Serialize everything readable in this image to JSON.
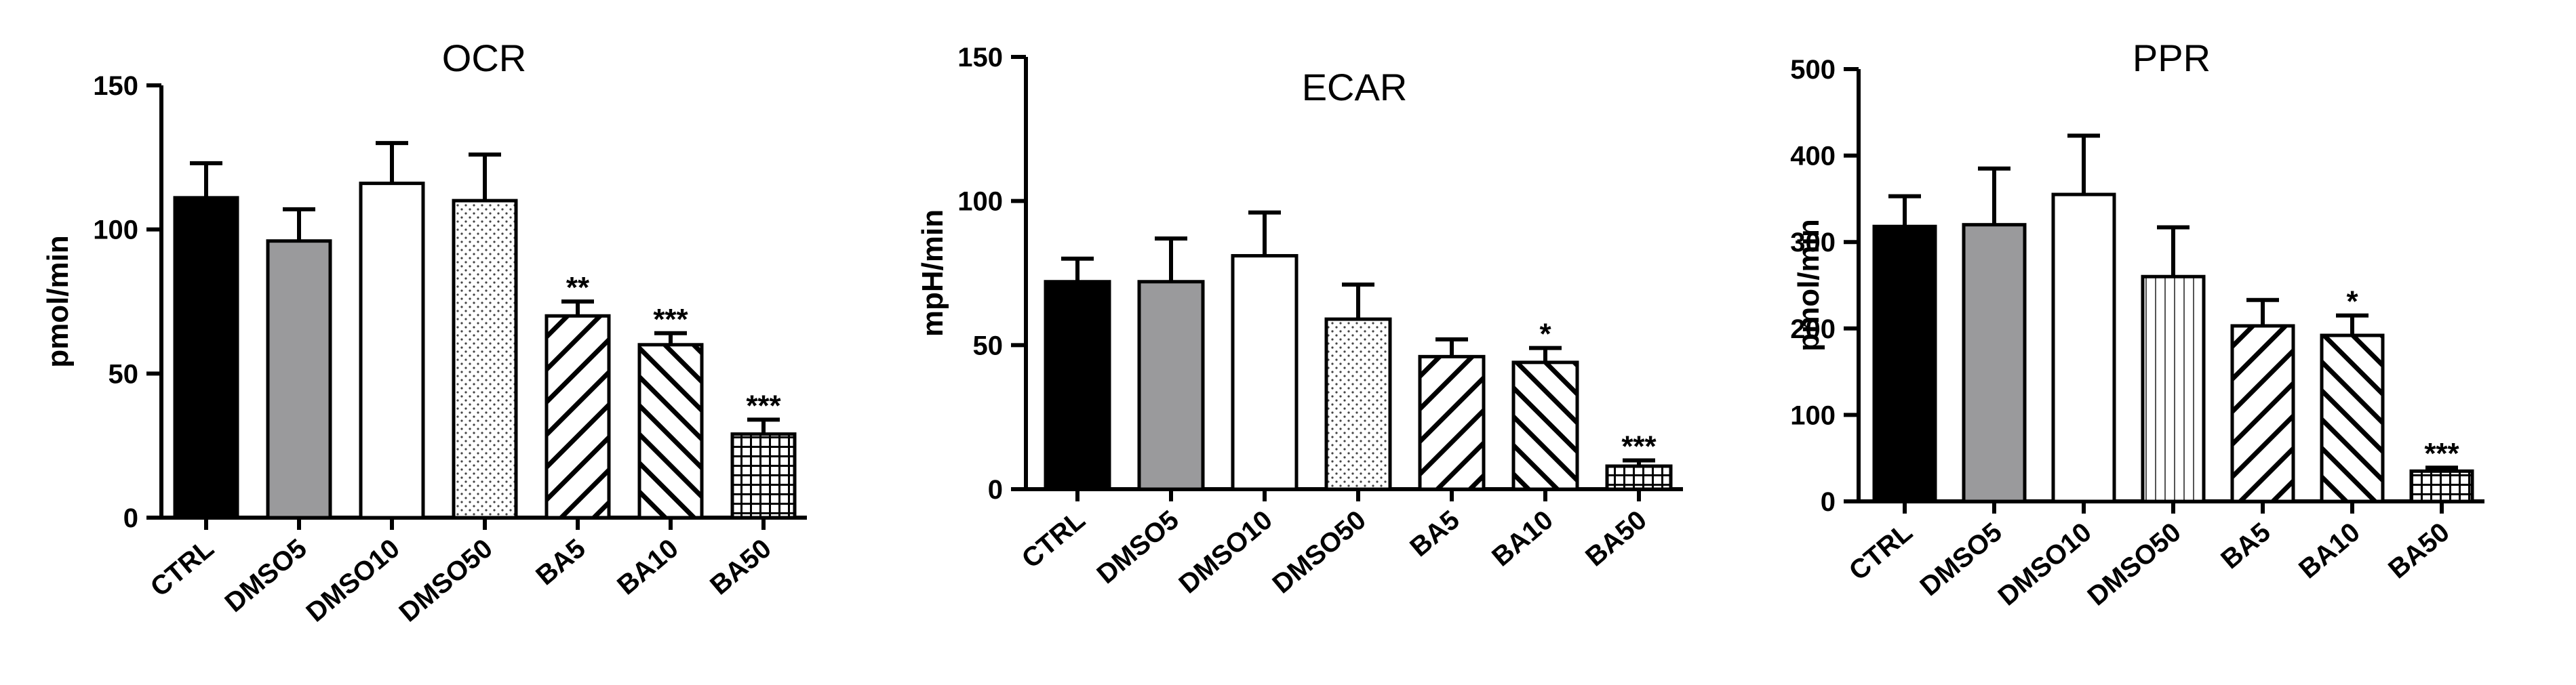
{
  "chart_data": [
    {
      "type": "bar",
      "title": "OCR",
      "ylabel": "pmol/min",
      "ylim": [
        0,
        150
      ],
      "yticks": [
        0,
        50,
        100,
        150
      ],
      "categories": [
        "CTRL",
        "DMSO5",
        "DMSO10",
        "DMSO50",
        "BA5",
        "BA10",
        "BA50"
      ],
      "values": [
        111,
        96,
        116,
        110,
        70,
        60,
        29
      ],
      "errors": [
        12,
        11,
        14,
        16,
        5,
        4,
        5
      ],
      "annotations": [
        "",
        "",
        "",
        "",
        "**",
        "***",
        "***"
      ],
      "fills": [
        "black",
        "gray",
        "white",
        "dots",
        "diag-right",
        "diag-left",
        "grid"
      ]
    },
    {
      "type": "bar",
      "title": "ECAR",
      "ylabel": "mpH/min",
      "ylim": [
        0,
        150
      ],
      "yticks": [
        0,
        50,
        100,
        150
      ],
      "categories": [
        "CTRL",
        "DMSO5",
        "DMSO10",
        "DMSO50",
        "BA5",
        "BA10",
        "BA50"
      ],
      "values": [
        72,
        72,
        81,
        59,
        46,
        44,
        8
      ],
      "errors": [
        8,
        15,
        15,
        12,
        6,
        5,
        2
      ],
      "annotations": [
        "",
        "",
        "",
        "",
        "",
        "*",
        "***"
      ],
      "fills": [
        "black",
        "gray",
        "white",
        "dots",
        "diag-right",
        "diag-left",
        "grid"
      ]
    },
    {
      "type": "bar",
      "title": "PPR",
      "ylabel": "pmol/min",
      "ylim": [
        0,
        500
      ],
      "yticks": [
        0,
        100,
        200,
        300,
        400,
        500
      ],
      "categories": [
        "CTRL",
        "DMSO5",
        "DMSO10",
        "DMSO50",
        "BA5",
        "BA10",
        "BA50"
      ],
      "values": [
        318,
        320,
        355,
        260,
        203,
        192,
        35
      ],
      "errors": [
        35,
        65,
        68,
        57,
        30,
        23,
        4
      ],
      "annotations": [
        "",
        "",
        "",
        "",
        "",
        "*",
        "***"
      ],
      "fills": [
        "black",
        "gray",
        "white",
        "vlines",
        "diag-right",
        "diag-left",
        "grid"
      ]
    }
  ]
}
